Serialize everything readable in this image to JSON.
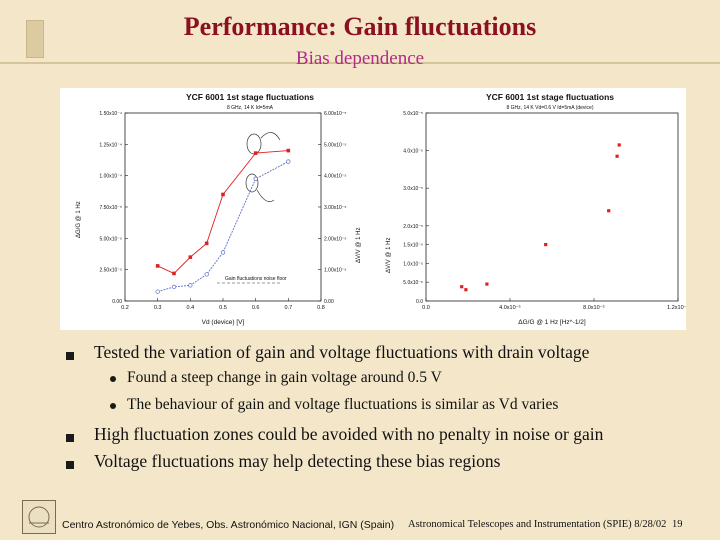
{
  "title": "Performance: Gain fluctuations",
  "subtitle": "Bias dependence",
  "bullets": [
    {
      "text": "Tested the variation of gain and voltage fluctuations with drain voltage",
      "sub": [
        "Found a steep change in gain voltage around 0.5 V",
        "The behaviour of gain and voltage fluctuations is similar as Vd varies"
      ]
    },
    {
      "text": "High fluctuation zones could be avoided with no penalty in noise or gain"
    },
    {
      "text": "Voltage fluctuations may help detecting these bias regions"
    }
  ],
  "footer": {
    "left": "Centro Astronómico de Yebes, Obs. Astronómico Nacional, IGN (Spain)",
    "right": "Astronomical Telescopes and Instrumentation (SPIE) 8/28/02",
    "page": "19"
  },
  "colors": {
    "title": "#8b1020",
    "subtitle": "#b3288a",
    "background": "#f4e7c9",
    "red_series": "#e02020",
    "blue_series": "#5a6fd0"
  },
  "chart_data": [
    {
      "type": "line",
      "title": "YCF 6001 1st stage fluctuations",
      "subtitle": "8 GHz, 14 K Id=5mA",
      "xlabel": "Vd (device) [V]",
      "ylabel": "ΔG/G @ 1 Hz",
      "y2label": "ΔV/V @ 1 Hz",
      "xlim": [
        0.2,
        0.8
      ],
      "ylim": [
        0,
        0.00015
      ],
      "y2lim": [
        0,
        6e-05
      ],
      "x_ticks": [
        "0.2",
        "0.3",
        "0.4",
        "0.5",
        "0.6",
        "0.7",
        "0.8"
      ],
      "y_ticks": [
        "0.00",
        "2.50x10⁻⁵",
        "5.00x10⁻⁵",
        "7.50x10⁻⁵",
        "1.00x10⁻⁴",
        "1.25x10⁻⁴",
        "1.50x10⁻⁴"
      ],
      "y2_ticks": [
        "0.00",
        "1.00x10⁻⁵",
        "2.00x10⁻⁵",
        "3.00x10⁻⁵",
        "4.00x10⁻⁵",
        "5.00x10⁻⁵",
        "6.00x10⁻⁵"
      ],
      "series": [
        {
          "color": "#e02020",
          "axis": "left",
          "x": [
            0.3,
            0.35,
            0.4,
            0.45,
            0.5,
            0.6,
            0.7
          ],
          "values": [
            2.8e-05,
            2.2e-05,
            3.5e-05,
            4.6e-05,
            8.5e-05,
            0.000118,
            0.00012
          ]
        },
        {
          "color": "#5a6fd0",
          "axis": "right",
          "x": [
            0.3,
            0.35,
            0.4,
            0.45,
            0.5,
            0.6,
            0.7
          ],
          "values": [
            3e-06,
            4.5e-06,
            5e-06,
            8.5e-06,
            1.55e-05,
            3.9e-05,
            4.45e-05
          ]
        }
      ],
      "annotations": [
        "Gain fluctuations noise floor"
      ]
    },
    {
      "type": "scatter",
      "title": "YCF 6001 1st stage fluctuations",
      "subtitle": "8 GHz, 14 K Vd=0.6 V Id=5mA (device)",
      "xlabel": "ΔG/G @ 1 Hz [Hz^-1/2]",
      "ylabel": "ΔV/V @ 1 Hz",
      "xlim": [
        0,
        0.00012
      ],
      "ylim": [
        0,
        5e-05
      ],
      "x_ticks": [
        "0.0",
        "4.0x10⁻⁵",
        "8.0x10⁻⁵",
        "1.2x10⁻⁴"
      ],
      "y_ticks": [
        "0.0",
        "5.0x10⁻⁶",
        "1.0x10⁻⁵",
        "1.5x10⁻⁵",
        "2.0x10⁻⁵",
        "3.0x10⁻⁵",
        "4.0x10⁻⁵",
        "5.0x10⁻⁵"
      ],
      "series": [
        {
          "color": "#e02020",
          "x": [
            1.7e-05,
            1.9e-05,
            2.9e-05,
            5.7e-05,
            8.7e-05,
            9.1e-05,
            9.2e-05
          ],
          "values": [
            3.8e-06,
            3e-06,
            4.5e-06,
            1.5e-05,
            2.4e-05,
            3.85e-05,
            4.15e-05
          ]
        }
      ]
    }
  ]
}
